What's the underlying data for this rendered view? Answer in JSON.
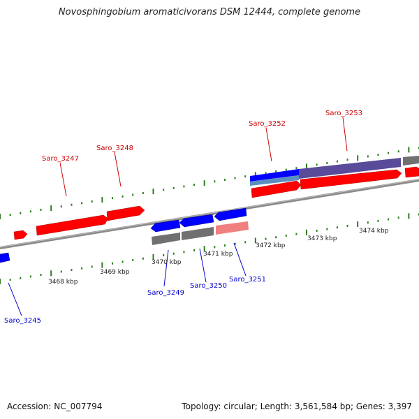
{
  "title": "Novosphingobium aromaticivorans DSM 12444, complete genome",
  "footer": {
    "accession": "Accession: NC_007794",
    "stats": "Topology: circular; Length: 3,561,584 bp; Genes: 3,397"
  },
  "colors": {
    "forward_gene": "#ff0000",
    "reverse_gene": "#0000ff",
    "pseudo_light": "#f08080",
    "cds_grey": "#707070",
    "purple_feature": "#5a4a9a",
    "steel_blue": "#5b8fc0",
    "backbone": "#8a8a8a",
    "tick_green": "#2e7d1f"
  },
  "scale_labels": [
    "3468 kbp",
    "3469 kbp",
    "3470 kbp",
    "3471 kbp",
    "3472 kbp",
    "3473 kbp",
    "3474 kbp"
  ],
  "genes_top": [
    {
      "label": "Saro_3247",
      "color": "#cc0000"
    },
    {
      "label": "Saro_3248",
      "color": "#cc0000"
    },
    {
      "label": "Saro_3252",
      "color": "#cc0000"
    },
    {
      "label": "Saro_3253",
      "color": "#cc0000"
    }
  ],
  "genes_bottom": [
    {
      "label": "Saro_3245",
      "color": "#0000cc"
    },
    {
      "label": "Saro_3249",
      "color": "#0000cc"
    },
    {
      "label": "Saro_3250",
      "color": "#0000cc"
    },
    {
      "label": "Saro_3251",
      "color": "#0000cc"
    }
  ]
}
